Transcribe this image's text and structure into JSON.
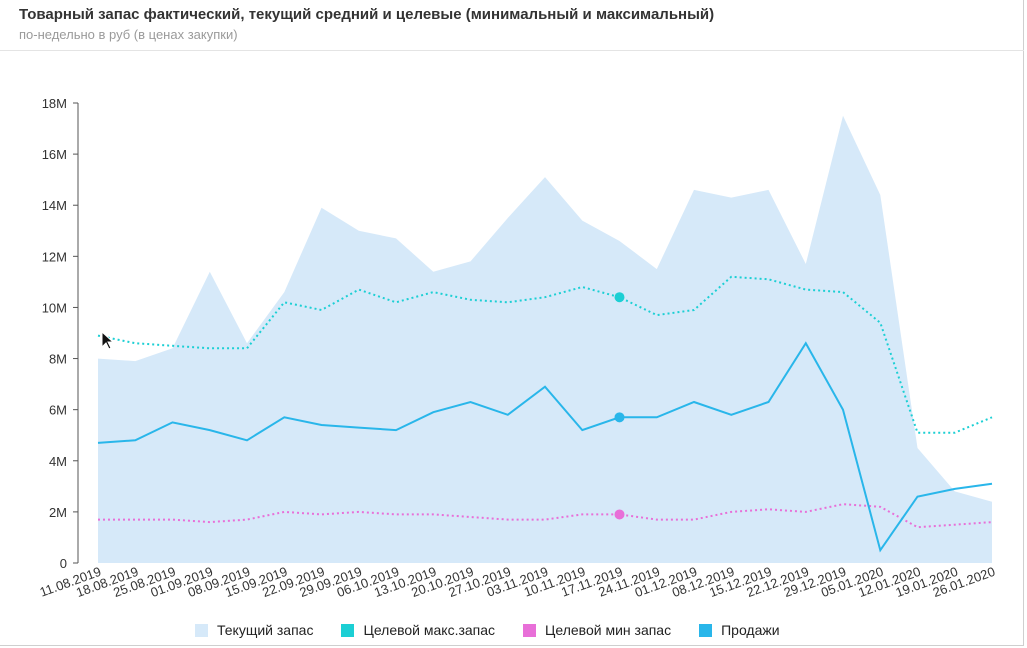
{
  "header": {
    "title": "Товарный запас фактический, текущий средний и целевые (минимальный и максимальный)",
    "subtitle": "по-недельно в руб (в ценах закупки)"
  },
  "chart_data": {
    "type": "area",
    "categories": [
      "11.08.2019",
      "18.08.2019",
      "25.08.2019",
      "01.09.2019",
      "08.09.2019",
      "15.09.2019",
      "22.09.2019",
      "29.09.2019",
      "06.10.2019",
      "13.10.2019",
      "20.10.2019",
      "27.10.2019",
      "03.11.2019",
      "10.11.2019",
      "17.11.2019",
      "24.11.2019",
      "01.12.2019",
      "08.12.2019",
      "15.12.2019",
      "22.12.2019",
      "29.12.2019",
      "05.01.2020",
      "12.01.2020",
      "19.01.2020",
      "26.01.2020"
    ],
    "ylim": [
      0,
      18000000
    ],
    "yticks": [
      0,
      2000000,
      4000000,
      6000000,
      8000000,
      10000000,
      12000000,
      14000000,
      16000000,
      18000000
    ],
    "ytick_labels": [
      "0",
      "2M",
      "4M",
      "6M",
      "8M",
      "10M",
      "12M",
      "14M",
      "16M",
      "18M"
    ],
    "grid": false,
    "legend_position": "bottom",
    "series": [
      {
        "name": "Текущий запас",
        "kind": "area",
        "color": "#d6e9f9",
        "values": [
          8000000,
          7900000,
          8400000,
          11400000,
          8600000,
          10600000,
          13900000,
          13000000,
          12700000,
          11400000,
          11800000,
          13500000,
          15100000,
          13400000,
          12600000,
          11500000,
          14600000,
          14300000,
          14600000,
          11700000,
          17500000,
          14400000,
          4500000,
          2800000,
          2400000
        ]
      },
      {
        "name": "Целевой макс.запас",
        "kind": "dotted",
        "color": "#1ccfd4",
        "values": [
          8900000,
          8600000,
          8500000,
          8400000,
          8400000,
          10200000,
          9900000,
          10700000,
          10200000,
          10600000,
          10300000,
          10200000,
          10400000,
          10800000,
          10400000,
          9700000,
          9900000,
          11200000,
          11100000,
          10700000,
          10600000,
          9400000,
          5100000,
          5100000,
          5700000
        ]
      },
      {
        "name": "Целевой мин запас",
        "kind": "dotted",
        "color": "#e86fd8",
        "values": [
          1700000,
          1700000,
          1700000,
          1600000,
          1700000,
          2000000,
          1900000,
          2000000,
          1900000,
          1900000,
          1800000,
          1700000,
          1700000,
          1900000,
          1900000,
          1700000,
          1700000,
          2000000,
          2100000,
          2000000,
          2300000,
          2200000,
          1400000,
          1500000,
          1600000
        ]
      },
      {
        "name": "Продажи",
        "kind": "line",
        "color": "#29b6ea",
        "values": [
          4700000,
          4800000,
          5500000,
          5200000,
          4800000,
          5700000,
          5400000,
          5300000,
          5200000,
          5900000,
          6300000,
          5800000,
          6900000,
          5200000,
          5700000,
          5700000,
          6300000,
          5800000,
          6300000,
          8600000,
          6000000,
          500000,
          2600000,
          2900000,
          3100000
        ]
      }
    ],
    "highlight_index": 14
  },
  "legend": {
    "items": [
      "Текущий запас",
      "Целевой макс.запас",
      "Целевой мин запас",
      "Продажи"
    ]
  }
}
